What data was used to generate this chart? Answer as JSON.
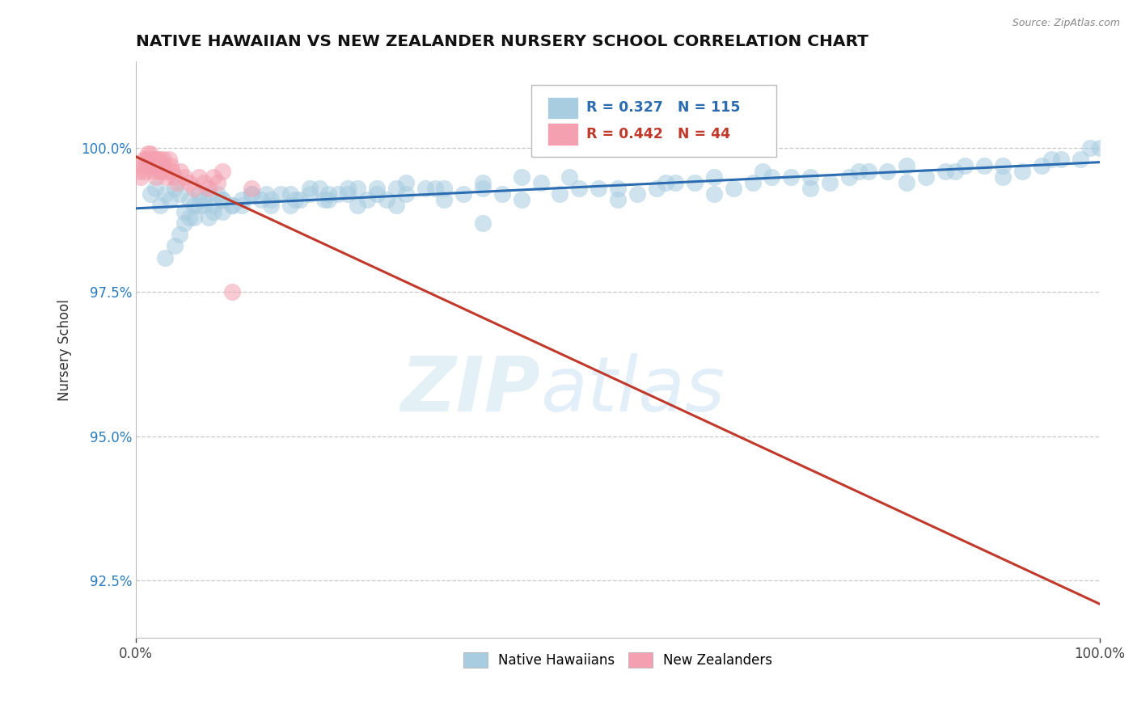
{
  "title": "NATIVE HAWAIIAN VS NEW ZEALANDER NURSERY SCHOOL CORRELATION CHART",
  "source_text": "Source: ZipAtlas.com",
  "ylabel": "Nursery School",
  "xlim": [
    0.0,
    100.0
  ],
  "ylim": [
    91.5,
    101.5
  ],
  "yticks": [
    92.5,
    95.0,
    97.5,
    100.0
  ],
  "xticks": [
    0.0,
    100.0
  ],
  "xtick_labels": [
    "0.0%",
    "100.0%"
  ],
  "ytick_labels": [
    "92.5%",
    "95.0%",
    "97.5%",
    "100.0%"
  ],
  "blue_R": 0.327,
  "blue_N": 115,
  "pink_R": 0.442,
  "pink_N": 44,
  "blue_color": "#a8cce0",
  "pink_color": "#f4a0b0",
  "blue_line_color": "#2b6cb0",
  "pink_line_color": "#c0392b",
  "legend_blue_label": "Native Hawaiians",
  "legend_pink_label": "New Zealanders",
  "watermark_zip": "ZIP",
  "watermark_atlas": "atlas",
  "blue_x": [
    1.5,
    2.0,
    2.5,
    3.0,
    3.5,
    4.0,
    4.5,
    5.0,
    5.5,
    6.0,
    6.5,
    7.0,
    7.5,
    8.0,
    8.5,
    9.0,
    10.0,
    11.0,
    12.0,
    13.0,
    14.0,
    15.0,
    16.0,
    17.0,
    18.0,
    19.0,
    20.0,
    21.0,
    22.0,
    23.0,
    24.0,
    25.0,
    26.0,
    27.0,
    28.0,
    30.0,
    32.0,
    34.0,
    36.0,
    38.0,
    40.0,
    42.0,
    44.0,
    46.0,
    48.0,
    50.0,
    52.0,
    54.0,
    56.0,
    58.0,
    60.0,
    62.0,
    64.0,
    66.0,
    68.0,
    70.0,
    72.0,
    74.0,
    76.0,
    78.0,
    80.0,
    82.0,
    84.0,
    86.0,
    88.0,
    90.0,
    92.0,
    94.0,
    96.0,
    98.0,
    100.0,
    3.0,
    4.0,
    5.0,
    6.0,
    7.0,
    8.0,
    9.0,
    10.0,
    12.0,
    14.0,
    16.0,
    18.0,
    20.0,
    22.0,
    25.0,
    28.0,
    32.0,
    36.0,
    40.0,
    45.0,
    50.0,
    55.0,
    60.0,
    65.0,
    70.0,
    75.0,
    80.0,
    85.0,
    90.0,
    95.0,
    99.0,
    4.5,
    5.5,
    6.5,
    7.5,
    9.0,
    11.0,
    13.5,
    16.5,
    19.5,
    23.0,
    27.0,
    31.0,
    36.0
  ],
  "blue_y": [
    99.2,
    99.3,
    99.0,
    99.2,
    99.1,
    99.3,
    99.2,
    98.9,
    99.1,
    99.0,
    99.2,
    99.1,
    99.2,
    99.0,
    99.2,
    99.1,
    99.0,
    99.1,
    99.2,
    99.1,
    99.0,
    99.2,
    99.0,
    99.1,
    99.2,
    99.3,
    99.1,
    99.2,
    99.2,
    99.0,
    99.1,
    99.2,
    99.1,
    99.3,
    99.2,
    99.3,
    99.1,
    99.2,
    99.3,
    99.2,
    99.1,
    99.4,
    99.2,
    99.3,
    99.3,
    99.1,
    99.2,
    99.3,
    99.4,
    99.4,
    99.2,
    99.3,
    99.4,
    99.5,
    99.5,
    99.3,
    99.4,
    99.5,
    99.6,
    99.6,
    99.4,
    99.5,
    99.6,
    99.7,
    99.7,
    99.5,
    99.6,
    99.7,
    99.8,
    99.8,
    100.0,
    98.1,
    98.3,
    98.7,
    98.8,
    99.0,
    98.9,
    99.1,
    99.0,
    99.2,
    99.1,
    99.2,
    99.3,
    99.2,
    99.3,
    99.3,
    99.4,
    99.3,
    99.4,
    99.5,
    99.5,
    99.3,
    99.4,
    99.5,
    99.6,
    99.5,
    99.6,
    99.7,
    99.6,
    99.7,
    99.8,
    100.0,
    98.5,
    98.8,
    99.0,
    98.8,
    98.9,
    99.0,
    99.2,
    99.1,
    99.1,
    99.3,
    99.0,
    99.3,
    98.7
  ],
  "pink_x": [
    0.3,
    0.5,
    0.7,
    0.8,
    0.9,
    1.0,
    1.1,
    1.2,
    1.3,
    1.4,
    1.5,
    1.6,
    1.7,
    1.8,
    1.9,
    2.0,
    2.1,
    2.2,
    2.3,
    2.4,
    2.5,
    2.6,
    2.7,
    2.8,
    2.9,
    3.0,
    3.2,
    3.4,
    3.6,
    3.8,
    4.0,
    4.3,
    4.6,
    5.0,
    5.5,
    6.0,
    6.5,
    7.0,
    7.5,
    8.0,
    8.5,
    9.0,
    10.0,
    12.0
  ],
  "pink_y": [
    99.6,
    99.5,
    99.7,
    99.8,
    99.6,
    99.8,
    99.7,
    99.9,
    99.8,
    99.7,
    99.9,
    99.8,
    99.7,
    99.6,
    99.8,
    99.7,
    99.5,
    99.8,
    99.7,
    99.6,
    99.8,
    99.7,
    99.6,
    99.8,
    99.7,
    99.6,
    99.5,
    99.8,
    99.7,
    99.6,
    99.5,
    99.4,
    99.6,
    99.5,
    99.4,
    99.3,
    99.5,
    99.4,
    99.3,
    99.5,
    99.4,
    99.6,
    97.5,
    99.3
  ]
}
